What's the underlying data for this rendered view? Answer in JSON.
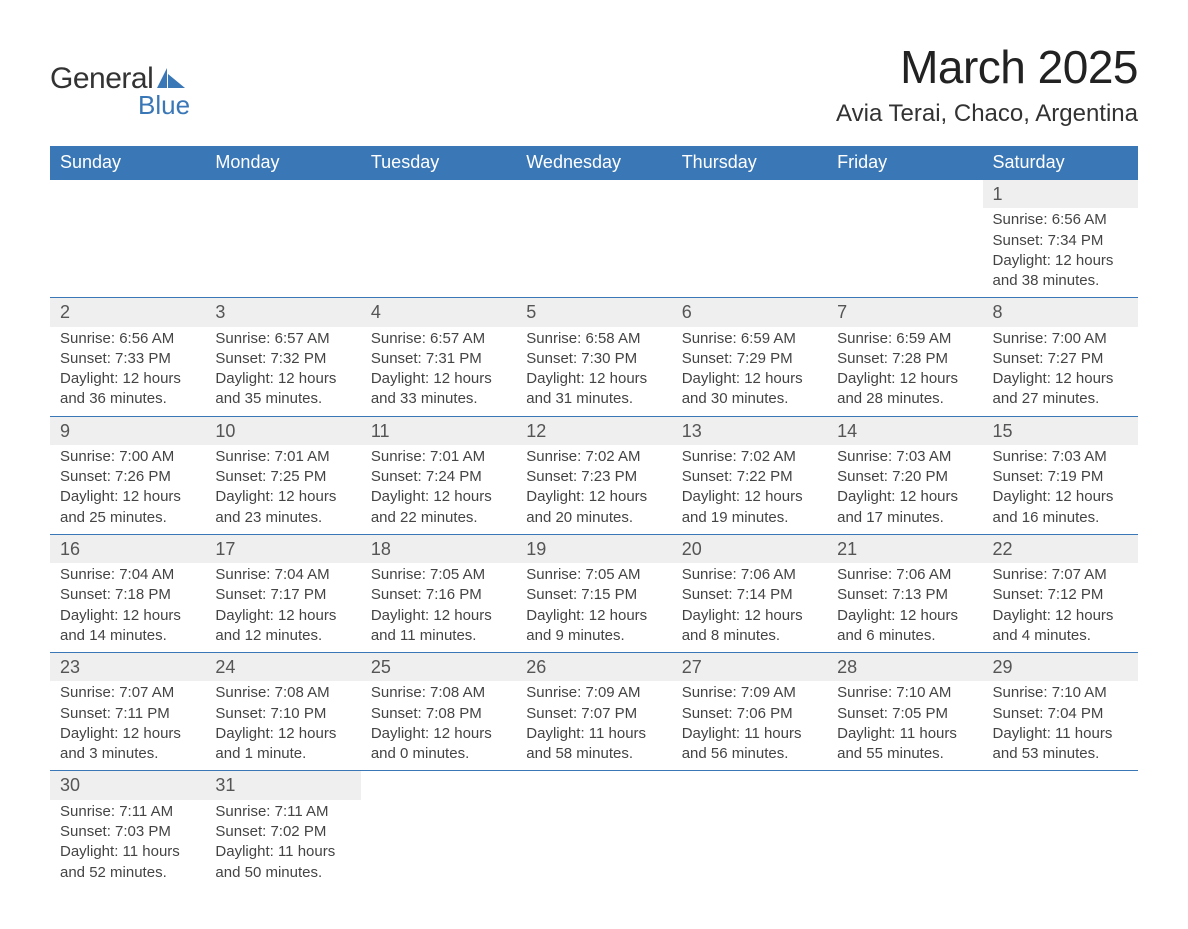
{
  "brand": {
    "general": "General",
    "blue": "Blue",
    "flag_color": "#3a77b7"
  },
  "title": "March 2025",
  "location": "Avia Terai, Chaco, Argentina",
  "theme": {
    "header_bg": "#3a77b7",
    "header_text": "#ffffff",
    "daynum_bg": "#efefef",
    "row_border": "#3a77b7",
    "text_color": "#444444",
    "title_fontsize": 46,
    "location_fontsize": 24,
    "header_fontsize": 18,
    "body_fontsize": 15
  },
  "weekdays": [
    "Sunday",
    "Monday",
    "Tuesday",
    "Wednesday",
    "Thursday",
    "Friday",
    "Saturday"
  ],
  "weeks": [
    [
      null,
      null,
      null,
      null,
      null,
      null,
      {
        "n": "1",
        "sr": "Sunrise: 6:56 AM",
        "ss": "Sunset: 7:34 PM",
        "d1": "Daylight: 12 hours",
        "d2": "and 38 minutes."
      }
    ],
    [
      {
        "n": "2",
        "sr": "Sunrise: 6:56 AM",
        "ss": "Sunset: 7:33 PM",
        "d1": "Daylight: 12 hours",
        "d2": "and 36 minutes."
      },
      {
        "n": "3",
        "sr": "Sunrise: 6:57 AM",
        "ss": "Sunset: 7:32 PM",
        "d1": "Daylight: 12 hours",
        "d2": "and 35 minutes."
      },
      {
        "n": "4",
        "sr": "Sunrise: 6:57 AM",
        "ss": "Sunset: 7:31 PM",
        "d1": "Daylight: 12 hours",
        "d2": "and 33 minutes."
      },
      {
        "n": "5",
        "sr": "Sunrise: 6:58 AM",
        "ss": "Sunset: 7:30 PM",
        "d1": "Daylight: 12 hours",
        "d2": "and 31 minutes."
      },
      {
        "n": "6",
        "sr": "Sunrise: 6:59 AM",
        "ss": "Sunset: 7:29 PM",
        "d1": "Daylight: 12 hours",
        "d2": "and 30 minutes."
      },
      {
        "n": "7",
        "sr": "Sunrise: 6:59 AM",
        "ss": "Sunset: 7:28 PM",
        "d1": "Daylight: 12 hours",
        "d2": "and 28 minutes."
      },
      {
        "n": "8",
        "sr": "Sunrise: 7:00 AM",
        "ss": "Sunset: 7:27 PM",
        "d1": "Daylight: 12 hours",
        "d2": "and 27 minutes."
      }
    ],
    [
      {
        "n": "9",
        "sr": "Sunrise: 7:00 AM",
        "ss": "Sunset: 7:26 PM",
        "d1": "Daylight: 12 hours",
        "d2": "and 25 minutes."
      },
      {
        "n": "10",
        "sr": "Sunrise: 7:01 AM",
        "ss": "Sunset: 7:25 PM",
        "d1": "Daylight: 12 hours",
        "d2": "and 23 minutes."
      },
      {
        "n": "11",
        "sr": "Sunrise: 7:01 AM",
        "ss": "Sunset: 7:24 PM",
        "d1": "Daylight: 12 hours",
        "d2": "and 22 minutes."
      },
      {
        "n": "12",
        "sr": "Sunrise: 7:02 AM",
        "ss": "Sunset: 7:23 PM",
        "d1": "Daylight: 12 hours",
        "d2": "and 20 minutes."
      },
      {
        "n": "13",
        "sr": "Sunrise: 7:02 AM",
        "ss": "Sunset: 7:22 PM",
        "d1": "Daylight: 12 hours",
        "d2": "and 19 minutes."
      },
      {
        "n": "14",
        "sr": "Sunrise: 7:03 AM",
        "ss": "Sunset: 7:20 PM",
        "d1": "Daylight: 12 hours",
        "d2": "and 17 minutes."
      },
      {
        "n": "15",
        "sr": "Sunrise: 7:03 AM",
        "ss": "Sunset: 7:19 PM",
        "d1": "Daylight: 12 hours",
        "d2": "and 16 minutes."
      }
    ],
    [
      {
        "n": "16",
        "sr": "Sunrise: 7:04 AM",
        "ss": "Sunset: 7:18 PM",
        "d1": "Daylight: 12 hours",
        "d2": "and 14 minutes."
      },
      {
        "n": "17",
        "sr": "Sunrise: 7:04 AM",
        "ss": "Sunset: 7:17 PM",
        "d1": "Daylight: 12 hours",
        "d2": "and 12 minutes."
      },
      {
        "n": "18",
        "sr": "Sunrise: 7:05 AM",
        "ss": "Sunset: 7:16 PM",
        "d1": "Daylight: 12 hours",
        "d2": "and 11 minutes."
      },
      {
        "n": "19",
        "sr": "Sunrise: 7:05 AM",
        "ss": "Sunset: 7:15 PM",
        "d1": "Daylight: 12 hours",
        "d2": "and 9 minutes."
      },
      {
        "n": "20",
        "sr": "Sunrise: 7:06 AM",
        "ss": "Sunset: 7:14 PM",
        "d1": "Daylight: 12 hours",
        "d2": "and 8 minutes."
      },
      {
        "n": "21",
        "sr": "Sunrise: 7:06 AM",
        "ss": "Sunset: 7:13 PM",
        "d1": "Daylight: 12 hours",
        "d2": "and 6 minutes."
      },
      {
        "n": "22",
        "sr": "Sunrise: 7:07 AM",
        "ss": "Sunset: 7:12 PM",
        "d1": "Daylight: 12 hours",
        "d2": "and 4 minutes."
      }
    ],
    [
      {
        "n": "23",
        "sr": "Sunrise: 7:07 AM",
        "ss": "Sunset: 7:11 PM",
        "d1": "Daylight: 12 hours",
        "d2": "and 3 minutes."
      },
      {
        "n": "24",
        "sr": "Sunrise: 7:08 AM",
        "ss": "Sunset: 7:10 PM",
        "d1": "Daylight: 12 hours",
        "d2": "and 1 minute."
      },
      {
        "n": "25",
        "sr": "Sunrise: 7:08 AM",
        "ss": "Sunset: 7:08 PM",
        "d1": "Daylight: 12 hours",
        "d2": "and 0 minutes."
      },
      {
        "n": "26",
        "sr": "Sunrise: 7:09 AM",
        "ss": "Sunset: 7:07 PM",
        "d1": "Daylight: 11 hours",
        "d2": "and 58 minutes."
      },
      {
        "n": "27",
        "sr": "Sunrise: 7:09 AM",
        "ss": "Sunset: 7:06 PM",
        "d1": "Daylight: 11 hours",
        "d2": "and 56 minutes."
      },
      {
        "n": "28",
        "sr": "Sunrise: 7:10 AM",
        "ss": "Sunset: 7:05 PM",
        "d1": "Daylight: 11 hours",
        "d2": "and 55 minutes."
      },
      {
        "n": "29",
        "sr": "Sunrise: 7:10 AM",
        "ss": "Sunset: 7:04 PM",
        "d1": "Daylight: 11 hours",
        "d2": "and 53 minutes."
      }
    ],
    [
      {
        "n": "30",
        "sr": "Sunrise: 7:11 AM",
        "ss": "Sunset: 7:03 PM",
        "d1": "Daylight: 11 hours",
        "d2": "and 52 minutes."
      },
      {
        "n": "31",
        "sr": "Sunrise: 7:11 AM",
        "ss": "Sunset: 7:02 PM",
        "d1": "Daylight: 11 hours",
        "d2": "and 50 minutes."
      },
      null,
      null,
      null,
      null,
      null
    ]
  ]
}
